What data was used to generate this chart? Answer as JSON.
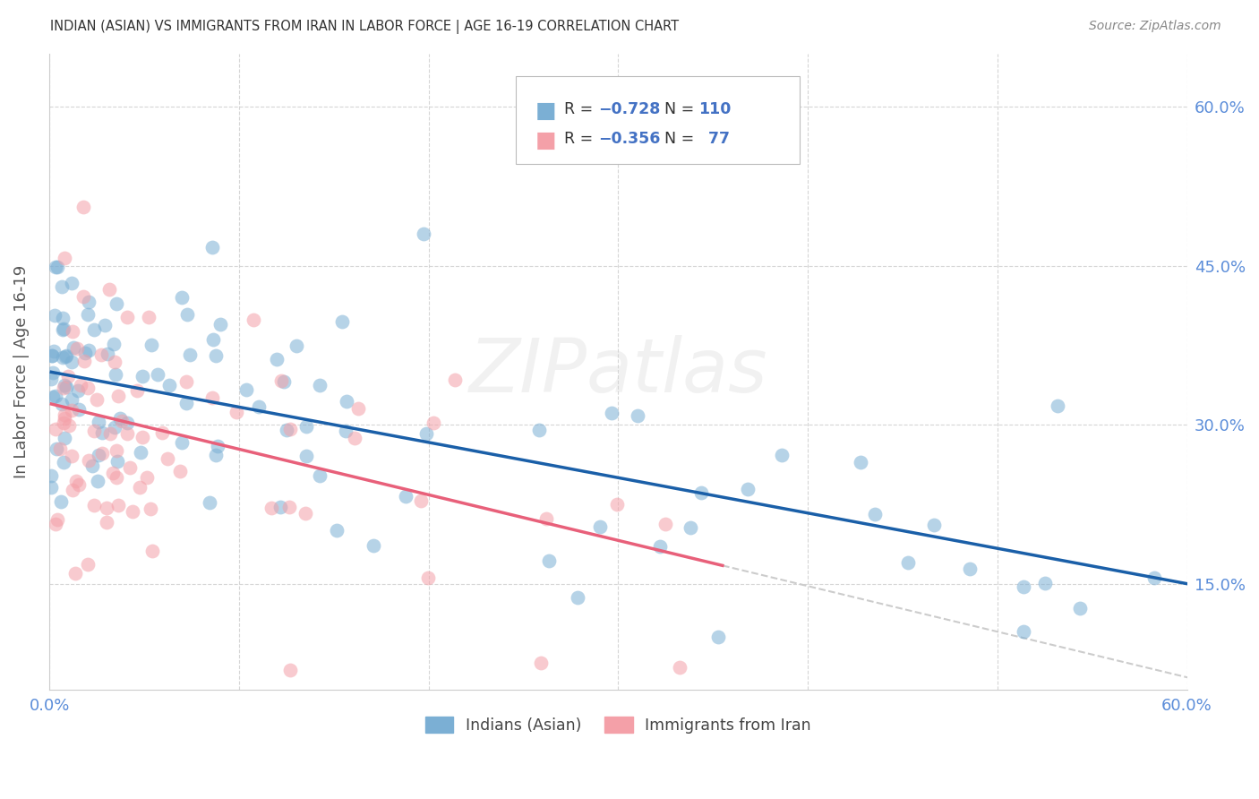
{
  "title": "INDIAN (ASIAN) VS IMMIGRANTS FROM IRAN IN LABOR FORCE | AGE 16-19 CORRELATION CHART",
  "source": "Source: ZipAtlas.com",
  "ylabel": "In Labor Force | Age 16-19",
  "xlim": [
    0.0,
    0.6
  ],
  "ylim": [
    0.05,
    0.65
  ],
  "ytick_labels_right": [
    "60.0%",
    "45.0%",
    "30.0%",
    "15.0%"
  ],
  "ytick_positions_right": [
    0.6,
    0.45,
    0.3,
    0.15
  ],
  "blue_color": "#7BAFD4",
  "pink_color": "#F4A0A8",
  "blue_line_color": "#1A5FA8",
  "pink_line_color": "#E8607A",
  "dashed_line_color": "#CCCCCC",
  "label_blue": "Indians (Asian)",
  "label_pink": "Immigrants from Iran",
  "background_color": "#FFFFFF",
  "grid_color": "#CCCCCC",
  "axis_label_color": "#5B8DD9",
  "title_color": "#333333",
  "legend_text_color": "#333333",
  "legend_value_color": "#4472C4",
  "watermark": "ZIPatlas"
}
